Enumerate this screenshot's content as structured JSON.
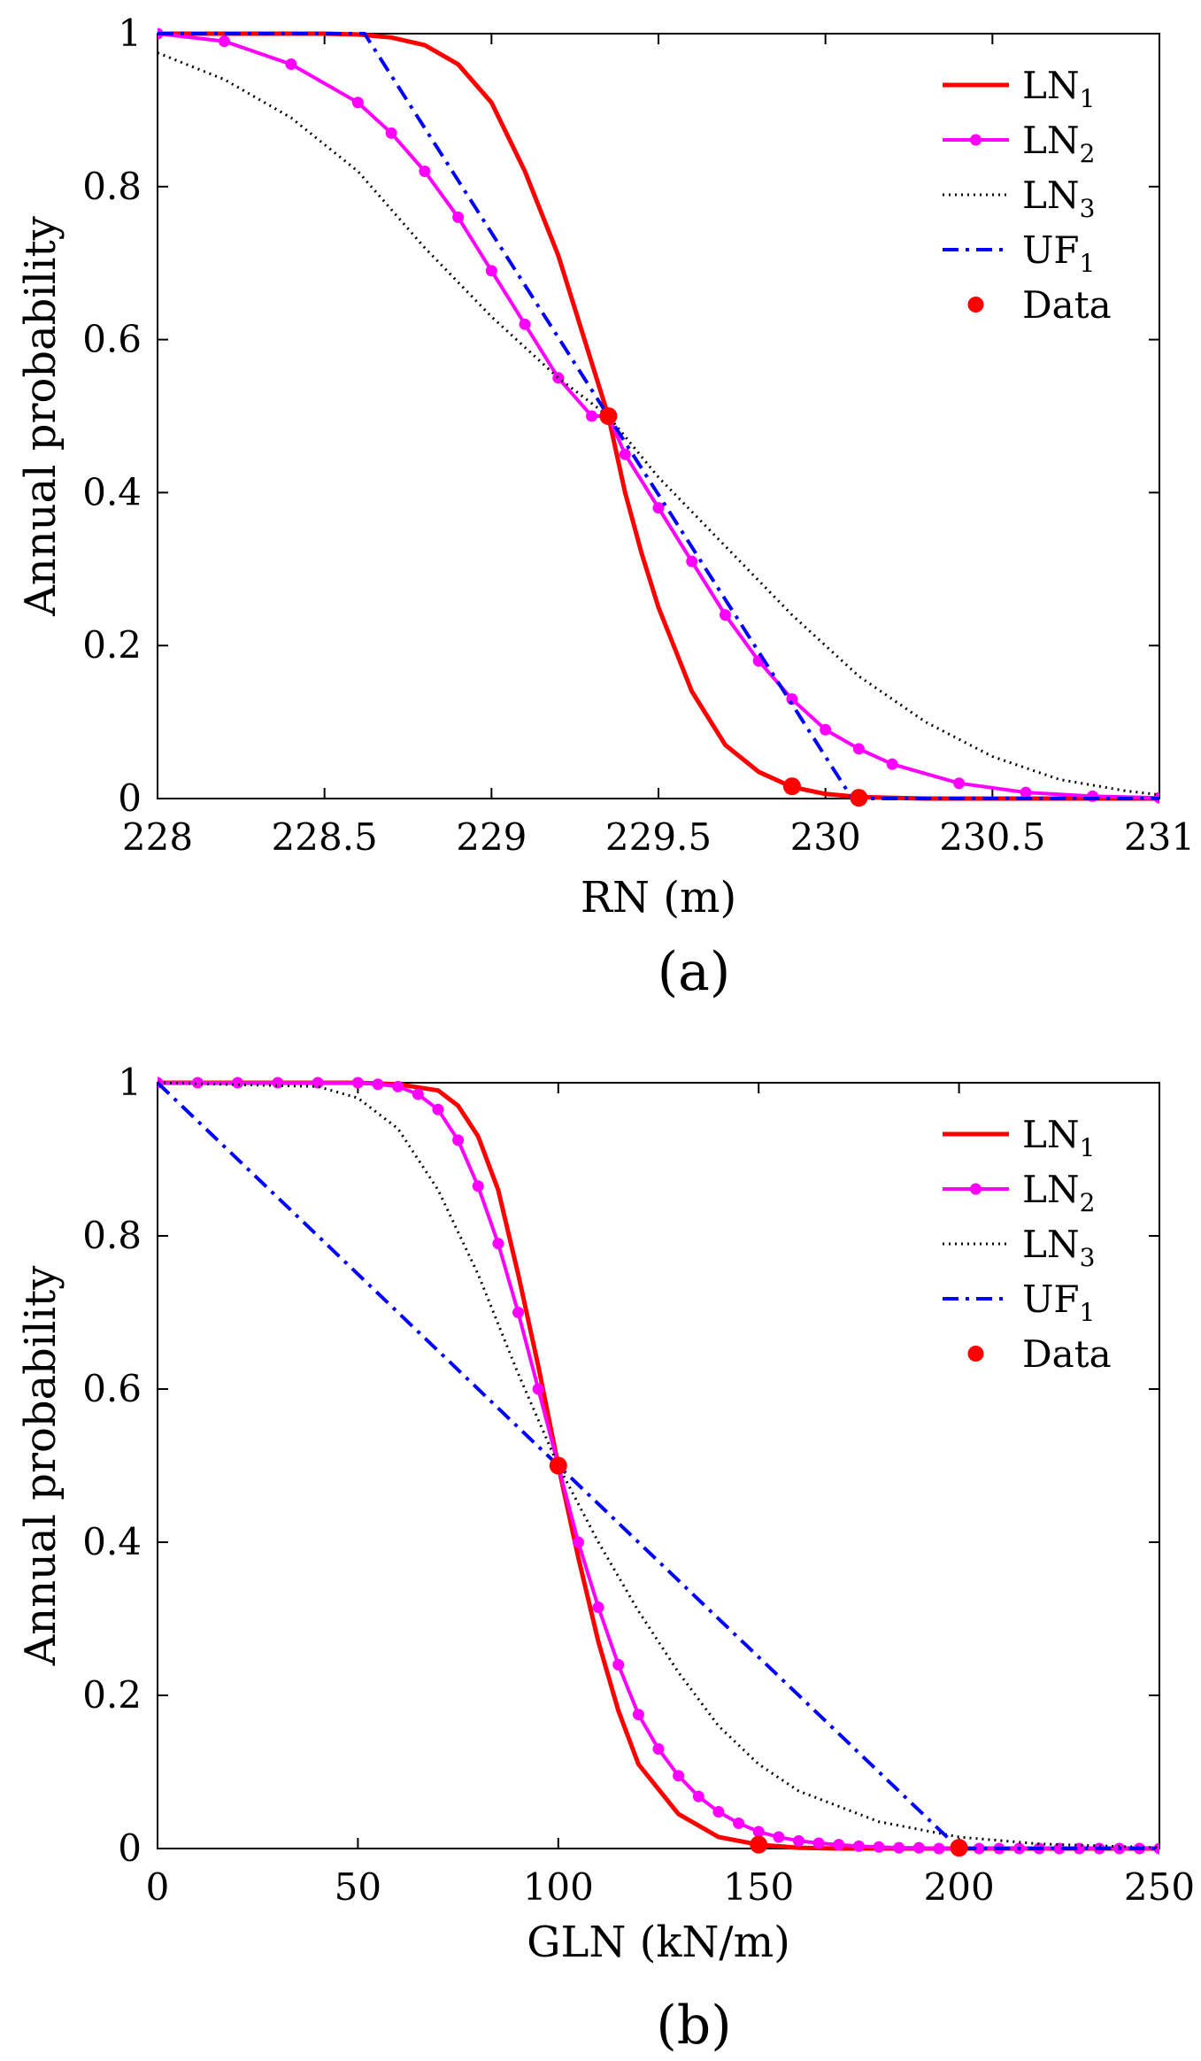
{
  "chart_data": [
    {
      "type": "line",
      "panel_label": "(a)",
      "xlabel": "RN (m)",
      "ylabel": "Annual probability",
      "xlim": [
        228,
        231
      ],
      "ylim": [
        0,
        1
      ],
      "xticks": [
        228,
        228.5,
        229,
        229.5,
        230,
        230.5,
        231
      ],
      "xtick_labels": [
        "228",
        "228.5",
        "229",
        "229.5",
        "230",
        "230.5",
        "231"
      ],
      "yticks": [
        0,
        0.2,
        0.4,
        0.6,
        0.8,
        1
      ],
      "ytick_labels": [
        "0",
        "0.2",
        "0.4",
        "0.6",
        "0.8",
        "1"
      ],
      "legend_position": "top-right",
      "series": [
        {
          "name": "LN",
          "subscript": "1",
          "color": "#ff0000",
          "style": "solid",
          "x": [
            228,
            228.3,
            228.5,
            228.6,
            228.7,
            228.8,
            228.9,
            229.0,
            229.1,
            229.2,
            229.3,
            229.35,
            229.4,
            229.45,
            229.5,
            229.6,
            229.7,
            229.8,
            229.9,
            230.0,
            230.1,
            230.3,
            230.5,
            231
          ],
          "y": [
            1,
            1,
            1,
            0.999,
            0.995,
            0.985,
            0.96,
            0.91,
            0.82,
            0.71,
            0.57,
            0.5,
            0.4,
            0.32,
            0.25,
            0.14,
            0.07,
            0.035,
            0.015,
            0.006,
            0.002,
            0,
            0,
            0
          ]
        },
        {
          "name": "LN",
          "subscript": "2",
          "color": "#ff00ff",
          "style": "solid-marker",
          "x": [
            228,
            228.2,
            228.4,
            228.6,
            228.7,
            228.8,
            228.9,
            229.0,
            229.1,
            229.2,
            229.3,
            229.35,
            229.4,
            229.5,
            229.6,
            229.7,
            229.8,
            229.9,
            230.0,
            230.1,
            230.2,
            230.4,
            230.6,
            230.8,
            231
          ],
          "y": [
            1,
            0.99,
            0.96,
            0.91,
            0.87,
            0.82,
            0.76,
            0.69,
            0.62,
            0.55,
            0.5,
            0.5,
            0.45,
            0.38,
            0.31,
            0.24,
            0.18,
            0.13,
            0.09,
            0.065,
            0.045,
            0.02,
            0.008,
            0.003,
            0.001
          ]
        },
        {
          "name": "LN",
          "subscript": "3",
          "color": "#000000",
          "style": "dotted",
          "x": [
            228,
            228.2,
            228.4,
            228.6,
            228.8,
            229.0,
            229.2,
            229.35,
            229.5,
            229.7,
            229.9,
            230.1,
            230.3,
            230.5,
            230.7,
            230.9,
            231
          ],
          "y": [
            0.975,
            0.94,
            0.89,
            0.82,
            0.72,
            0.63,
            0.55,
            0.5,
            0.42,
            0.33,
            0.24,
            0.16,
            0.1,
            0.055,
            0.025,
            0.01,
            0.005
          ]
        },
        {
          "name": "UF",
          "subscript": "1",
          "color": "#0000ff",
          "style": "dashdot",
          "x": [
            228,
            228.62,
            230.08,
            231
          ],
          "y": [
            1,
            1,
            0,
            0
          ]
        },
        {
          "name": "Data",
          "subscript": "",
          "color": "#ff0000",
          "style": "points",
          "x": [
            229.35,
            229.9,
            230.1
          ],
          "y": [
            0.5,
            0.016,
            0.001
          ]
        }
      ]
    },
    {
      "type": "line",
      "panel_label": "(b)",
      "xlabel": "GLN (kN/m)",
      "ylabel": "Annual probability",
      "xlim": [
        0,
        250
      ],
      "ylim": [
        0,
        1
      ],
      "xticks": [
        0,
        50,
        100,
        150,
        200,
        250
      ],
      "xtick_labels": [
        "0",
        "50",
        "100",
        "150",
        "200",
        "250"
      ],
      "yticks": [
        0,
        0.2,
        0.4,
        0.6,
        0.8,
        1
      ],
      "ytick_labels": [
        "0",
        "0.2",
        "0.4",
        "0.6",
        "0.8",
        "1"
      ],
      "legend_position": "top-right",
      "series": [
        {
          "name": "LN",
          "subscript": "1",
          "color": "#ff0000",
          "style": "solid",
          "x": [
            0,
            50,
            60,
            70,
            75,
            80,
            85,
            90,
            95,
            100,
            105,
            110,
            115,
            120,
            130,
            140,
            150,
            160,
            170,
            250
          ],
          "y": [
            1,
            1,
            0.998,
            0.99,
            0.97,
            0.93,
            0.86,
            0.75,
            0.63,
            0.5,
            0.38,
            0.27,
            0.18,
            0.11,
            0.045,
            0.015,
            0.005,
            0.001,
            0,
            0
          ]
        },
        {
          "name": "LN",
          "subscript": "2",
          "color": "#ff00ff",
          "style": "solid-marker",
          "x": [
            0,
            10,
            20,
            30,
            40,
            50,
            55,
            60,
            65,
            70,
            75,
            80,
            85,
            90,
            95,
            100,
            105,
            110,
            115,
            120,
            125,
            130,
            135,
            140,
            145,
            150,
            155,
            160,
            165,
            170,
            175,
            180,
            185,
            190,
            195,
            200,
            205,
            210,
            215,
            220,
            225,
            230,
            235,
            240,
            245,
            250
          ],
          "y": [
            1,
            1,
            1,
            1,
            1,
            1,
            0.998,
            0.995,
            0.985,
            0.965,
            0.925,
            0.865,
            0.79,
            0.7,
            0.6,
            0.5,
            0.4,
            0.315,
            0.24,
            0.175,
            0.13,
            0.095,
            0.068,
            0.048,
            0.033,
            0.022,
            0.015,
            0.01,
            0.007,
            0.005,
            0.003,
            0.002,
            0.001,
            0.001,
            0,
            0,
            0,
            0,
            0,
            0,
            0,
            0,
            0,
            0,
            0,
            0
          ]
        },
        {
          "name": "LN",
          "subscript": "3",
          "color": "#000000",
          "style": "dotted",
          "x": [
            0,
            40,
            50,
            60,
            70,
            80,
            90,
            100,
            110,
            120,
            130,
            140,
            150,
            160,
            180,
            200,
            220,
            250
          ],
          "y": [
            1,
            0.995,
            0.98,
            0.94,
            0.86,
            0.75,
            0.62,
            0.5,
            0.4,
            0.31,
            0.23,
            0.16,
            0.11,
            0.075,
            0.035,
            0.015,
            0.006,
            0.001
          ]
        },
        {
          "name": "UF",
          "subscript": "1",
          "color": "#0000ff",
          "style": "dashdot",
          "x": [
            0,
            200,
            250
          ],
          "y": [
            1,
            0,
            0
          ]
        },
        {
          "name": "Data",
          "subscript": "",
          "color": "#ff0000",
          "style": "points",
          "x": [
            100,
            150,
            200
          ],
          "y": [
            0.5,
            0.005,
            0.001
          ]
        }
      ]
    }
  ]
}
